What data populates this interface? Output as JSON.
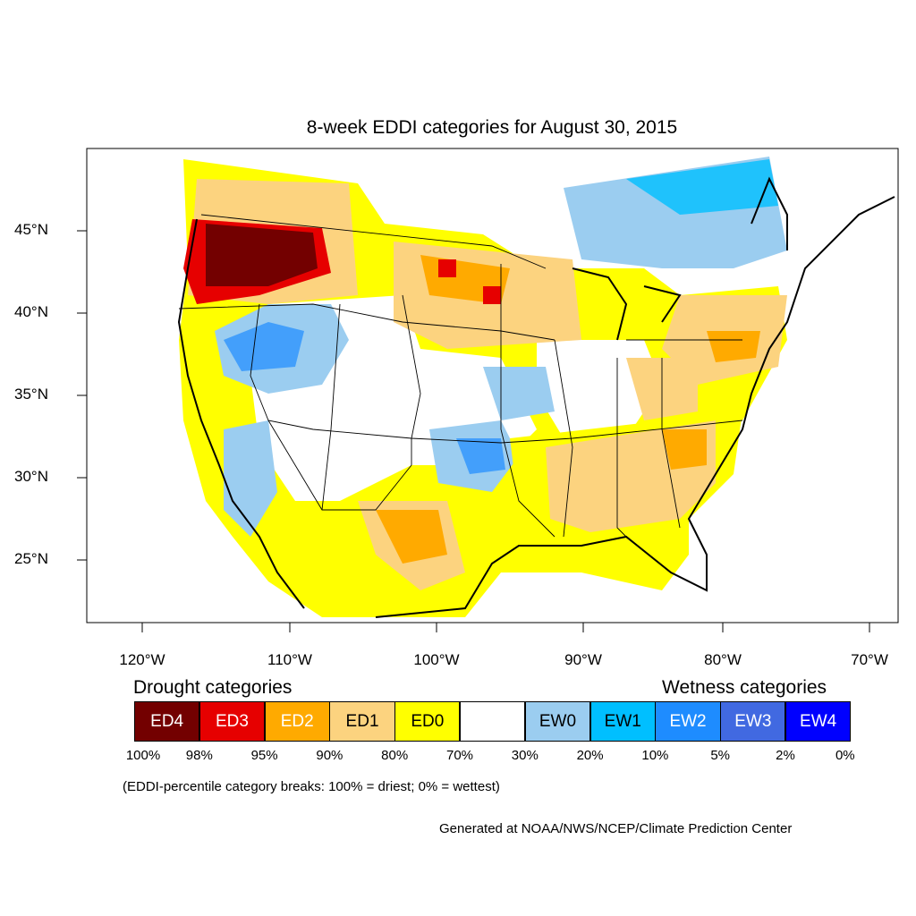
{
  "title": "8-week EDDI categories for August 30, 2015",
  "map": {
    "lat_range": [
      21,
      50
    ],
    "lon_range": [
      -124,
      -68.5
    ],
    "y_ticks": [
      "45°N",
      "40°N",
      "35°N",
      "30°N",
      "25°N"
    ],
    "x_ticks": [
      "120°W",
      "110°W",
      "100°W",
      "90°W",
      "80°W",
      "70°W"
    ],
    "regions": [
      {
        "name": "pacific-northwest-ed4",
        "category": "ED4"
      },
      {
        "name": "northern-plains-ed2",
        "category": "ED2"
      },
      {
        "name": "southeast-ed1",
        "category": "ED1"
      },
      {
        "name": "great-basin-ew1",
        "category": "EW1"
      },
      {
        "name": "southern-plains-ew1",
        "category": "EW1"
      },
      {
        "name": "great-lakes-canada-ew0",
        "category": "EW0"
      },
      {
        "name": "texas-ed0",
        "category": "ED0"
      },
      {
        "name": "ohio-valley-ed0",
        "category": "ED0"
      }
    ]
  },
  "legend": {
    "drought_heading": "Drought categories",
    "wetness_heading": "Wetness categories",
    "categories": [
      {
        "label": "ED4",
        "color": "#730000",
        "text_color": "#ffffff"
      },
      {
        "label": "ED3",
        "color": "#e60000",
        "text_color": "#ffffff"
      },
      {
        "label": "ED2",
        "color": "#ffaa00",
        "text_color": "#ffffff"
      },
      {
        "label": "ED1",
        "color": "#fcd37f",
        "text_color": "#000000"
      },
      {
        "label": "ED0",
        "color": "#ffff00",
        "text_color": "#000000"
      },
      {
        "label": "",
        "color": "#ffffff",
        "text_color": "#000000"
      },
      {
        "label": "EW0",
        "color": "#9bcdf0",
        "text_color": "#000000"
      },
      {
        "label": "EW1",
        "color": "#00bfff",
        "text_color": "#000000"
      },
      {
        "label": "EW2",
        "color": "#1e8cff",
        "text_color": "#ffffff"
      },
      {
        "label": "EW3",
        "color": "#4169e1",
        "text_color": "#ffffff"
      },
      {
        "label": "EW4",
        "color": "#0000ff",
        "text_color": "#ffffff"
      }
    ],
    "breaks": [
      "100%",
      "98%",
      "95%",
      "90%",
      "80%",
      "70%",
      "30%",
      "20%",
      "10%",
      "5%",
      "2%",
      "0%"
    ]
  },
  "note": "(EDDI-percentile category breaks: 100% = driest; 0% = wettest)",
  "credit": "Generated at NOAA/NWS/NCEP/Climate Prediction Center"
}
